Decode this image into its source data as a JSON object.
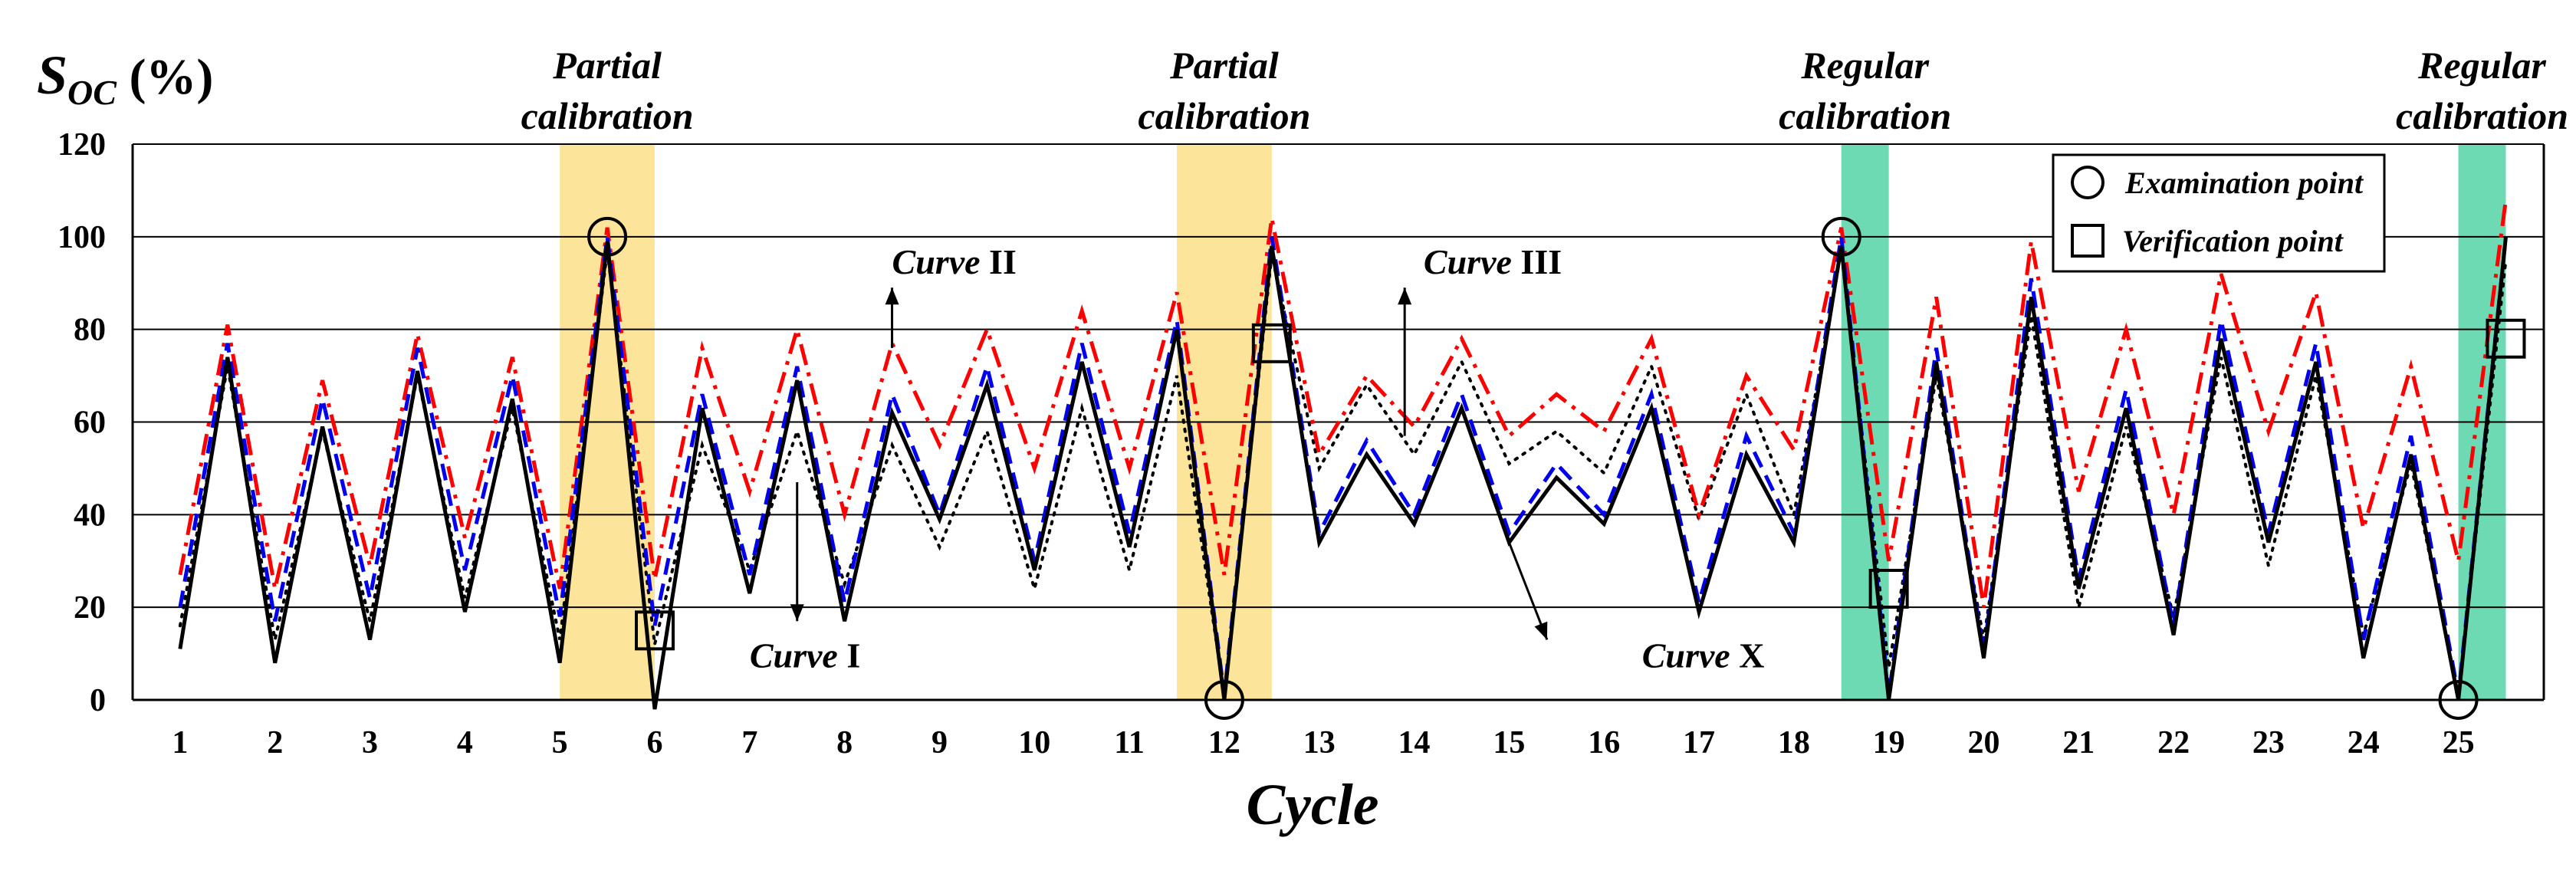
{
  "chart_data": {
    "type": "line",
    "title": "",
    "ylabel_main": "S",
    "ylabel_sub": "OC",
    "ylabel_unit": " (%)",
    "xlabel": "Cycle",
    "ylim": [
      0,
      120
    ],
    "xlim": [
      0.5,
      25.9
    ],
    "yticks": [
      0,
      20,
      40,
      60,
      80,
      100,
      120
    ],
    "xticks": [
      "1",
      "2",
      "3",
      "4",
      "5",
      "6",
      "7",
      "8",
      "9",
      "10",
      "11",
      "12",
      "13",
      "14",
      "15",
      "16",
      "17",
      "18",
      "19",
      "20",
      "21",
      "22",
      "23",
      "24",
      "25"
    ],
    "grid": true,
    "bands": [
      {
        "label_line1": "Partial",
        "label_line2": "calibration",
        "x_start": 5.0,
        "x_end": 6.0,
        "color": "#fce59a"
      },
      {
        "label_line1": "Partial",
        "label_line2": "calibration",
        "x_start": 11.5,
        "x_end": 12.5,
        "color": "#fce59a"
      },
      {
        "label_line1": "Regular",
        "label_line2": "calibration",
        "x_start": 18.5,
        "x_end": 19.0,
        "color": "#6ddab3"
      },
      {
        "label_line1": "Regular",
        "label_line2": "calibration",
        "x_start": 25.0,
        "x_end": 25.5,
        "color": "#6ddab3"
      }
    ],
    "series": [
      {
        "name": "Curve X",
        "color": "#000000",
        "style": "solid",
        "x": [
          1,
          1.5,
          2,
          2.5,
          3,
          3.5,
          4,
          4.5,
          5,
          5.5,
          6,
          6.5,
          7,
          7.5,
          8,
          8.5,
          9,
          9.5,
          10,
          10.5,
          11,
          11.5,
          12,
          12.5,
          13,
          13.5,
          14,
          14.5,
          15,
          15.5,
          16,
          16.5,
          17,
          17.5,
          18,
          18.5,
          19,
          19.5,
          20,
          20.5,
          21,
          21.5,
          22,
          22.5,
          23,
          23.5,
          24,
          24.5,
          25,
          25.5
        ],
        "y": [
          11,
          74,
          8,
          59,
          13,
          71,
          19,
          65,
          8,
          99,
          -2,
          63,
          23,
          69,
          17,
          62,
          39,
          68,
          28,
          73,
          33,
          80,
          0,
          98,
          34,
          53,
          38,
          63,
          34,
          48,
          38,
          63,
          19,
          53,
          34,
          98,
          0,
          73,
          9,
          87,
          24,
          63,
          14,
          78,
          34,
          73,
          9,
          53,
          0,
          100
        ]
      },
      {
        "name": "Curve I",
        "color": "#000000",
        "style": "dotted",
        "x": [
          1,
          1.5,
          2,
          2.5,
          3,
          3.5,
          4,
          4.5,
          5,
          5.5,
          6,
          6.5,
          7,
          7.5,
          8,
          8.5,
          9,
          9.5,
          10,
          10.5,
          11,
          11.5,
          12,
          12.5,
          13,
          13.5,
          14,
          14.5,
          15,
          15.5,
          16,
          16.5,
          17,
          17.5,
          18,
          18.5,
          19,
          19.5,
          20,
          20.5,
          21,
          21.5,
          22,
          22.5,
          23,
          23.5,
          24,
          24.5,
          25,
          25.5
        ],
        "y": [
          16,
          72,
          13,
          58,
          17,
          70,
          22,
          63,
          13,
          97,
          12,
          55,
          28,
          58,
          25,
          55,
          33,
          58,
          24,
          63,
          28,
          70,
          1,
          96,
          50,
          68,
          53,
          73,
          51,
          58,
          49,
          72,
          39,
          66,
          40,
          97,
          7,
          70,
          13,
          83,
          20,
          59,
          18,
          74,
          29,
          70,
          14,
          51,
          1,
          95
        ]
      },
      {
        "name": "Curve II",
        "color": "#ff0000",
        "style": "dashdot",
        "x": [
          1,
          1.5,
          2,
          2.5,
          3,
          3.5,
          4,
          4.5,
          5,
          5.5,
          6,
          6.5,
          7,
          7.5,
          8,
          8.5,
          9,
          9.5,
          10,
          10.5,
          11,
          11.5,
          12,
          12.5,
          13,
          13.5,
          14,
          14.5,
          15,
          15.5,
          16,
          16.5,
          17,
          17.5,
          18,
          18.5,
          19,
          19.5,
          20,
          20.5,
          21,
          21.5,
          22,
          22.5,
          23,
          23.5,
          24,
          24.5,
          25,
          25.5
        ],
        "y": [
          27,
          81,
          24,
          69,
          29,
          79,
          35,
          74,
          24,
          102,
          26,
          76,
          45,
          80,
          40,
          77,
          55,
          80,
          50,
          84,
          50,
          88,
          27,
          104,
          53,
          70,
          59,
          78,
          57,
          66,
          58,
          78,
          40,
          70,
          54,
          102,
          30,
          87,
          20,
          99,
          45,
          80,
          40,
          92,
          58,
          88,
          37,
          72,
          30,
          108
        ]
      },
      {
        "name": "Curve III",
        "color": "#0000ee",
        "style": "dashed",
        "x": [
          1,
          1.5,
          2,
          2.5,
          3,
          3.5,
          4,
          4.5,
          5,
          5.5,
          6,
          6.5,
          7,
          7.5,
          8,
          8.5,
          9,
          9.5,
          10,
          10.5,
          11,
          11.5,
          12,
          12.5,
          13,
          13.5,
          14,
          14.5,
          15,
          15.5,
          16,
          16.5,
          17,
          17.5,
          18,
          18.5,
          19,
          19.5,
          20,
          20.5,
          21,
          21.5,
          22,
          22.5,
          23,
          23.5,
          24,
          24.5,
          25,
          25.5
        ],
        "y": [
          20,
          77,
          17,
          65,
          22,
          76,
          28,
          70,
          18,
          100,
          16,
          66,
          27,
          72,
          21,
          66,
          40,
          72,
          30,
          77,
          36,
          82,
          1,
          100,
          36,
          56,
          40,
          66,
          36,
          51,
          40,
          66,
          21,
          57,
          36,
          100,
          1,
          76,
          10,
          91,
          26,
          67,
          16,
          82,
          36,
          77,
          13,
          57,
          1,
          100
        ]
      }
    ],
    "examination_points": [
      {
        "x": 5.5,
        "y": 100
      },
      {
        "x": 12,
        "y": 0
      },
      {
        "x": 18.5,
        "y": 100
      },
      {
        "x": 25,
        "y": 0
      }
    ],
    "verification_points": [
      {
        "x": 6,
        "y": 15
      },
      {
        "x": 12.5,
        "y": 77
      },
      {
        "x": 19,
        "y": 24
      },
      {
        "x": 25.5,
        "y": 78
      }
    ],
    "annotations": [
      {
        "italic": "Curve",
        "roman": " I",
        "text_x": 7.0,
        "text_y": 7,
        "arrow_from": [
          7.5,
          47
        ],
        "arrow_to": [
          7.5,
          17
        ]
      },
      {
        "italic": "Curve",
        "roman": " II",
        "text_x": 8.5,
        "text_y": 92,
        "arrow_from": [
          8.5,
          76
        ],
        "arrow_to": [
          8.5,
          89
        ]
      },
      {
        "italic": "Curve",
        "roman": " III",
        "text_x": 14.1,
        "text_y": 92,
        "arrow_from": [
          13.9,
          57
        ],
        "arrow_to": [
          13.9,
          89
        ]
      },
      {
        "italic": "Curve",
        "roman": " X",
        "text_x": 16.4,
        "text_y": 7,
        "arrow_from": [
          15,
          34
        ],
        "arrow_to": [
          15.4,
          13
        ]
      }
    ],
    "legend": {
      "placement": "top-right",
      "entries": [
        {
          "marker": "circle",
          "label": "Examination point"
        },
        {
          "marker": "square",
          "label": "Verification point"
        }
      ]
    }
  }
}
